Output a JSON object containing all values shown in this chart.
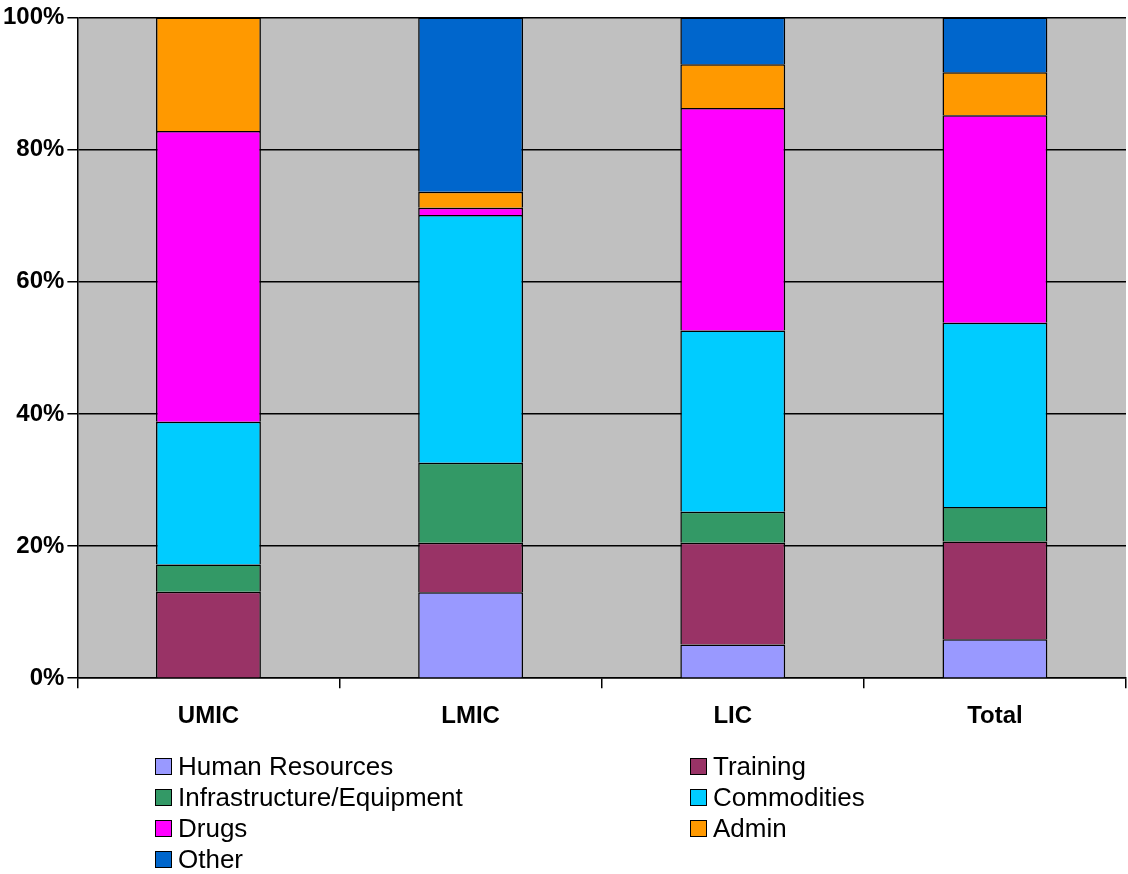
{
  "chart_data": {
    "type": "bar",
    "stacked": true,
    "categories": [
      "UMIC",
      "LMIC",
      "LIC",
      "Total"
    ],
    "ylim": [
      0,
      100
    ],
    "yticks": [
      {
        "value": 0,
        "label": "0%"
      },
      {
        "value": 20,
        "label": "20%"
      },
      {
        "value": 40,
        "label": "40%"
      },
      {
        "value": 60,
        "label": "60%"
      },
      {
        "value": 80,
        "label": "80%"
      },
      {
        "value": 100,
        "label": "100%"
      }
    ],
    "grid": "y",
    "legend": "bottom",
    "series": [
      {
        "name": "Human Resources",
        "color": "#9999ff",
        "values": [
          0,
          13.0,
          5.1,
          5.9
        ]
      },
      {
        "name": "Training",
        "color": "#993366",
        "values": [
          13.1,
          7.5,
          15.4,
          14.8
        ]
      },
      {
        "name": "Infrastructure/Equipment",
        "color": "#339966",
        "values": [
          4.1,
          12.1,
          4.7,
          5.2
        ]
      },
      {
        "name": "Commodities",
        "color": "#00ccff",
        "values": [
          21.6,
          37.5,
          27.4,
          27.9
        ]
      },
      {
        "name": "Drugs",
        "color": "#ff00ff",
        "values": [
          44.0,
          1.1,
          33.7,
          31.4
        ]
      },
      {
        "name": "Admin",
        "color": "#ff9900",
        "values": [
          17.2,
          2.4,
          6.6,
          6.5
        ]
      },
      {
        "name": "Other",
        "color": "#0066cc",
        "values": [
          0,
          26.4,
          7.1,
          8.3
        ]
      }
    ]
  }
}
